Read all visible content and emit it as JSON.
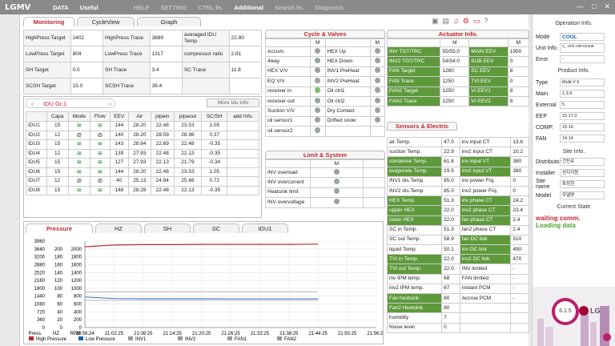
{
  "app": {
    "logo": "LGMV",
    "menu": [
      "DATA",
      "Useful",
      "HELP",
      "SETTING",
      "CTRL fn.",
      "Additional",
      "Search fn.",
      "Diagnosis"
    ],
    "window_buttons": [
      "—",
      "□",
      "✕"
    ]
  },
  "main_tabs": [
    "Monitoring",
    "CycleView",
    "Graph"
  ],
  "summary": [
    [
      "HighPress Target",
      "2402",
      "HighPress Trace",
      "3889",
      "averaged IDU Temp.",
      "22.80"
    ],
    [
      "LowPress Target",
      "804",
      "LowPress Trace",
      "1317",
      "compressor ratio",
      "2.81"
    ],
    [
      "SH Target",
      "0.0",
      "SH Trace",
      "3.4",
      "SC Trace",
      "11.8"
    ],
    [
      "SCSH Target",
      "15.0",
      "SCSH Trace",
      "39.4",
      "",
      ""
    ]
  ],
  "idu": {
    "group": "IDU Gr.1",
    "more": "More Idu Info",
    "headers": [
      "",
      "Capa",
      "Mode",
      "Flow",
      "EEV",
      "Air",
      "pipein",
      "pipeout",
      "SC/SH",
      "add Info."
    ],
    "rows": [
      [
        "IDU1",
        "15",
        "fan",
        "fan",
        "144",
        "28.20",
        "22.48",
        "23.53",
        "1.05",
        ""
      ],
      [
        "IDU2",
        "12",
        "off",
        "off",
        "140",
        "28.20",
        "28.59",
        "28.96",
        "0.37",
        ""
      ],
      [
        "IDU3",
        "15",
        "fan",
        "fan",
        "143",
        "28.64",
        "22.69",
        "22.48",
        "-0.35",
        ""
      ],
      [
        "IDU4",
        "12",
        "fan",
        "fan",
        "139",
        "27.93",
        "22.48",
        "22.13",
        "-0.35",
        ""
      ],
      [
        "IDU5",
        "15",
        "fan",
        "fan",
        "127",
        "27.93",
        "22.13",
        "21.79",
        "-0.34",
        ""
      ],
      [
        "IDU6",
        "15",
        "fan",
        "fan",
        "144",
        "28.20",
        "22.48",
        "23.53",
        "1.05",
        ""
      ],
      [
        "IDU7",
        "12",
        "off",
        "off",
        "40",
        "25.13",
        "24.94",
        "25.66",
        "0.72",
        ""
      ],
      [
        "IDU8",
        "15",
        "fan",
        "fan",
        "148",
        "28.28",
        "22.48",
        "22.13",
        "-0.35",
        ""
      ]
    ]
  },
  "cycle": {
    "title": "Cycle & Valves",
    "col": "M",
    "left": [
      "Accum.",
      "4way",
      "HEX V/V",
      "EQ V/V",
      "receiver in",
      "receiver out",
      "Suction V/V",
      "oil sensor1",
      "oil sensor2"
    ],
    "right": [
      "HEX Up",
      "HEX Down",
      "INV1 PreHeat",
      "INV2 PreHeat",
      "Oil ctrl1",
      "Oil ctrl2",
      "Dry Contact",
      "Drifted snow"
    ]
  },
  "limit": {
    "title": "Limit & System",
    "col": "M",
    "items": [
      "INV overload",
      "INV overcurrent",
      "Heatsink limit",
      "INV overvoltage"
    ]
  },
  "actuator": {
    "title": "Actuator Info.",
    "col": "M",
    "rows": [
      [
        "INV TGT/TRC",
        "55/55.0",
        "MAIN EEV",
        "1950"
      ],
      [
        "INV2 TGT/TRC",
        "54/54.0",
        "SUB EEV",
        "0"
      ],
      [
        "FAN Target",
        "1260",
        "SC EEV",
        "8"
      ],
      [
        "FAN Trace",
        "1250",
        "TVI EEV",
        "0"
      ],
      [
        "FAN2 Target",
        "1250",
        "VI EEV1",
        "8"
      ],
      [
        "FAN2 Trace",
        "1250",
        "VI EEV2",
        "8"
      ]
    ]
  },
  "sensors": {
    "title": "Sensors & Electric",
    "rows": [
      [
        "air Temp.",
        "47.0",
        "inv input CT",
        "13.6"
      ],
      [
        "suction Temp.",
        "22.9",
        "inv2 input CT",
        "10.2"
      ],
      [
        "condense Temp.",
        "61.8",
        "inv input VT",
        "380"
      ],
      [
        "evaporate Temp.",
        "19.5",
        "inv2 input VT",
        "380"
      ],
      [
        "INV1 dis.Temp.",
        "85.0",
        "inv power Frq.",
        "0"
      ],
      [
        "INV2 dis.Temp.",
        "85.0",
        "inv2 power Frq.",
        "0"
      ],
      [
        "HEX Temp.",
        "51.3",
        "inv phase CT",
        "24.2"
      ],
      [
        "upper HEX",
        "22.0",
        "inv2 phase CT",
        "23.4"
      ],
      [
        "lower HEX",
        "22.0",
        "fan phase CT",
        "2.4"
      ],
      [
        "SC in Temp.",
        "51.3",
        "fan2 phase CT",
        "2.4"
      ],
      [
        "SC out Temp.",
        "58.9",
        "fan DC link",
        "510"
      ],
      [
        "liquid Temp.",
        "50.1",
        "inv DC link",
        "490"
      ],
      [
        "TVI in Temp.",
        "22.0",
        "inv2 DC link",
        "470"
      ],
      [
        "TVI out Temp.",
        "22.0",
        "INV limited",
        "-"
      ],
      [
        "inv IPM temp.",
        "68",
        "FAN limited",
        "-"
      ],
      [
        "inv2 IPM temp.",
        "67",
        "Instant PCM",
        "-"
      ],
      [
        "Fan heatsink",
        "80",
        "Accrue PCM",
        "-"
      ],
      [
        "Fan2 Heatsink",
        "80",
        "",
        ""
      ],
      [
        "humidity",
        "7",
        "",
        ""
      ],
      [
        "Noise level",
        "0",
        "",
        ""
      ]
    ]
  },
  "graph": {
    "tabs": [
      "Pressure",
      "HZ",
      "SH",
      "SC",
      "IDU1"
    ],
    "axis_press": [
      "3960",
      "3640",
      "3200",
      "2880",
      "2520",
      "2160",
      "1800",
      "1440",
      "1080",
      "720",
      "360",
      "0"
    ],
    "axis_hz": [
      "200",
      "180",
      "160",
      "140",
      "120",
      "100",
      "80",
      "60",
      "40",
      "20",
      "0"
    ],
    "axis_rpm": [
      "2000",
      "1800",
      "1600",
      "1400",
      "1200",
      "1000",
      "800",
      "600",
      "400",
      "200",
      "0"
    ],
    "axis_names": [
      "Press.",
      "HZ",
      "RPM"
    ],
    "times": [
      "20:56:24",
      "21:02:25",
      "21:08:25",
      "21:14:25",
      "21:20:25",
      "21:26:25",
      "21:32:25",
      "21:38:25",
      "21:44:25",
      "21:50:25",
      "21:56:25"
    ],
    "legend": [
      [
        "High Pressure",
        "#c0252c"
      ],
      [
        "Low Pressure",
        "#1f5fb0"
      ],
      [
        "INV1",
        "#999999"
      ],
      [
        "INV2",
        "#999999"
      ],
      [
        "FAN1",
        "#999999"
      ],
      [
        "FAN2",
        "#999999"
      ]
    ]
  },
  "chart_data": {
    "type": "line",
    "x": [
      "20:56:24",
      "21:02:25",
      "21:08:25",
      "21:14:25",
      "21:20:25",
      "21:26:25",
      "21:32:25",
      "21:38:25",
      "21:44:25",
      "21:50:25",
      "21:56:25"
    ],
    "series": [
      {
        "name": "High Pressure",
        "values": [
          3700,
          3780,
          3800,
          3800,
          3810,
          3810,
          3810,
          3810,
          3820,
          null,
          null
        ]
      },
      {
        "name": "Low Pressure",
        "values": [
          1400,
          1330,
          1320,
          1320,
          1320,
          1317,
          1317,
          1317,
          1317,
          null,
          null
        ]
      },
      {
        "name": "INV1",
        "values": [
          1620,
          1640,
          1640,
          1640,
          1640,
          1640,
          1640,
          1640,
          1640,
          null,
          null
        ]
      },
      {
        "name": "FAN1",
        "values": [
          1250,
          1250,
          1250,
          1250,
          1250,
          1250,
          1250,
          1250,
          1250,
          null,
          null
        ]
      }
    ],
    "ylim": [
      0,
      3960
    ]
  },
  "side": {
    "operation_title": "Operation Info.",
    "mode_label": "Mode",
    "mode_value": "COOL",
    "unit_label": "Unit Info.",
    "unit_value": "C_ HFk H3P4G3H8",
    "error_label": "Error",
    "error_value": "-",
    "product_title": "Product Info.",
    "type_label": "Type",
    "type_value": "Multi V 5",
    "main_label": "Main",
    "main_value": "1.3.9",
    "external_label": "External",
    "external_value": "5",
    "eep_label": "EEP",
    "eep_value": "15.17.3",
    "comp_label": "COMP.",
    "comp_value": "15.16",
    "fan_label": "FAN",
    "fan_value": "14.14",
    "site_title": "Site Info.",
    "distributor_label": "Distributor",
    "distributor_value": "건진유",
    "installer_label": "Installer",
    "installer_value": "성지지원",
    "sitename_label": "Site name",
    "sitename_value": "특정현",
    "model_label": "Model",
    "model_value": "모델명",
    "state_title": "Current State",
    "state1": "waiting comm.",
    "state2": "Loading data",
    "version": "6.1.5",
    "brand": "LG"
  }
}
